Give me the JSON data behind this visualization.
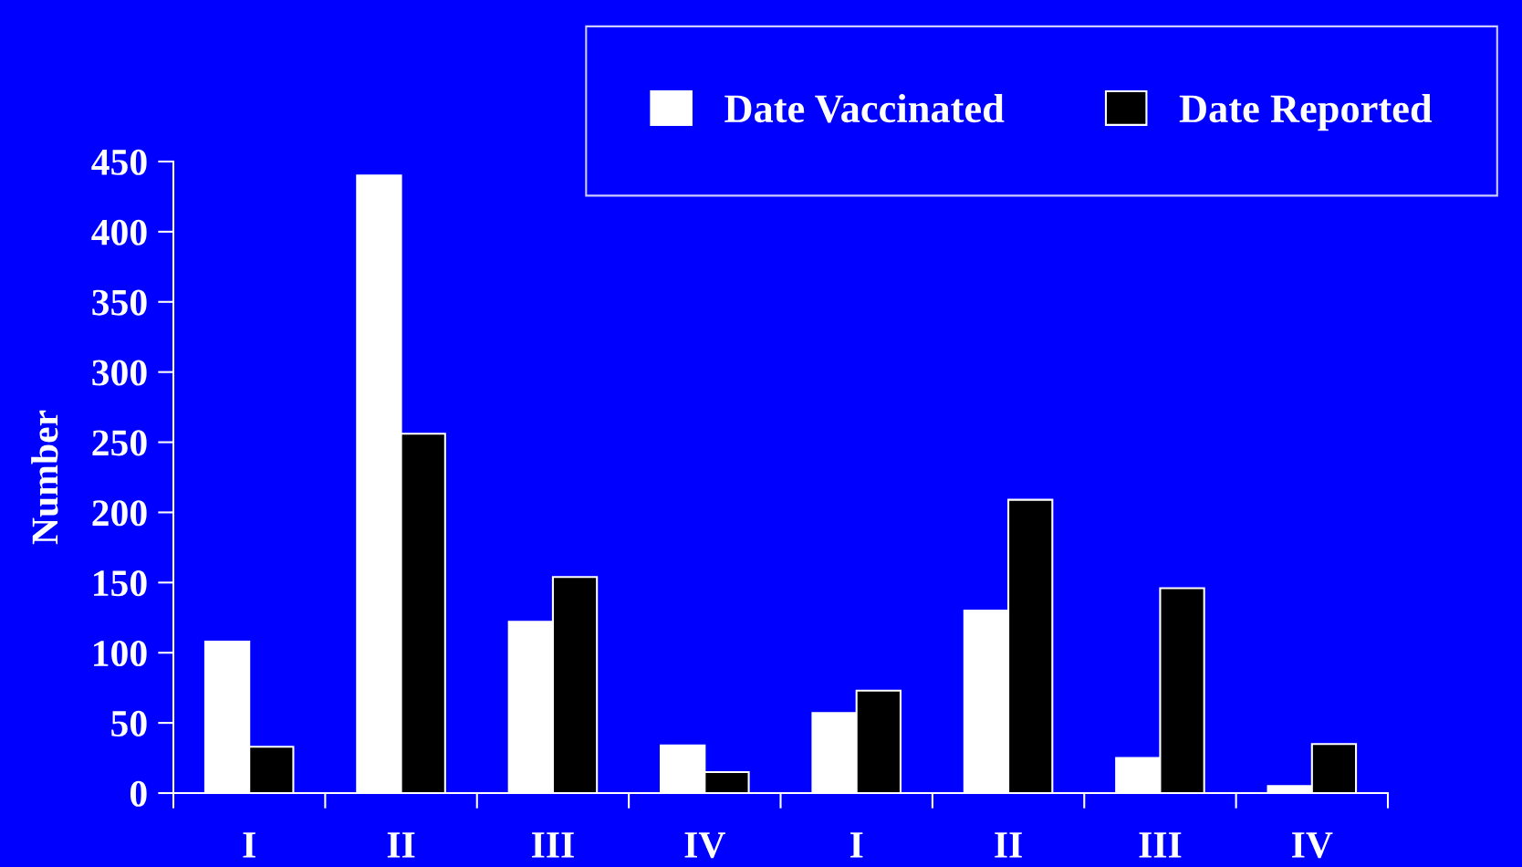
{
  "chart_data": {
    "type": "bar",
    "ylabel": "Number",
    "categories": [
      "I",
      "II",
      "III",
      "IV",
      "I",
      "II",
      "III",
      "IV"
    ],
    "series": [
      {
        "name": "Date Vaccinated",
        "color": "#ffffff",
        "values": [
          108,
          440,
          122,
          34,
          57,
          130,
          25,
          5
        ]
      },
      {
        "name": "Date Reported",
        "color": "#000000",
        "values": [
          33,
          256,
          154,
          15,
          73,
          209,
          146,
          35
        ]
      }
    ],
    "ylim": [
      0,
      450
    ],
    "yticks": [
      0,
      50,
      100,
      150,
      200,
      250,
      300,
      350,
      400,
      450
    ],
    "grid": false,
    "legend": "top right"
  }
}
